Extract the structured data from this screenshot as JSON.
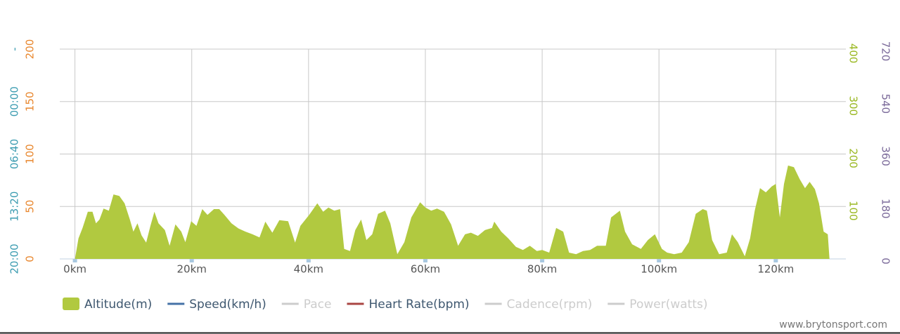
{
  "chart_data": {
    "type": "area",
    "xlim": [
      -2.6,
      132
    ],
    "xticks": [
      {
        "value": 0,
        "label": "0km"
      },
      {
        "value": 20,
        "label": "20km"
      },
      {
        "value": 40,
        "label": "40km"
      },
      {
        "value": 60,
        "label": "60km"
      },
      {
        "value": 80,
        "label": "80km"
      },
      {
        "value": 100,
        "label": "100km"
      },
      {
        "value": 120,
        "label": "120km"
      }
    ],
    "ylim": [
      0,
      200
    ],
    "yticks": [
      0,
      50,
      100,
      150,
      200
    ],
    "ycolor": "#e8872e",
    "pace_lim": [
      1200,
      -400
    ],
    "pace_ticks": [
      {
        "value": 1200,
        "label": "20:00"
      },
      {
        "value": 800,
        "label": "13:20"
      },
      {
        "value": 400,
        "label": "06:40"
      },
      {
        "value": 0,
        "label": "00:00"
      },
      {
        "value": -400,
        "label": "-"
      }
    ],
    "pace_color": "#3a9bb0",
    "y2lim": [
      0,
      400
    ],
    "y2ticks": [
      100,
      200,
      300,
      400
    ],
    "y2color": "#9ab822",
    "y3lim": [
      0,
      720
    ],
    "y3ticks": [
      0,
      180,
      360,
      540,
      720
    ],
    "y3color": "#7b6a9a",
    "grid": true,
    "legend": "bottom",
    "credit": "www.brytonsport.com",
    "series": [
      {
        "name": "Altitude(m)",
        "color": "#b1c940",
        "axis": "y2",
        "x": [
          0,
          0.6,
          1.3,
          2.2,
          3.0,
          3.6,
          4.2,
          4.9,
          5.8,
          6.6,
          7.6,
          8.5,
          9.4,
          10.0,
          10.7,
          11.4,
          12.2,
          12.9,
          13.6,
          14.3,
          15.4,
          16.2,
          17.2,
          18.2,
          18.9,
          19.9,
          20.8,
          21.8,
          22.7,
          23.8,
          24.7,
          25.6,
          26.8,
          28.0,
          29.2,
          30.4,
          31.6,
          32.6,
          33.8,
          35.0,
          36.5,
          37.7,
          38.6,
          40.1,
          41.5,
          42.5,
          43.4,
          44.4,
          45.4,
          46.1,
          47.1,
          48.0,
          49.0,
          49.9,
          50.9,
          51.9,
          53.1,
          54.0,
          55.2,
          56.4,
          57.6,
          59.1,
          60.0,
          61.0,
          62.0,
          63.2,
          64.4,
          65.6,
          66.8,
          67.8,
          69.0,
          70.2,
          71.4,
          71.8,
          73.0,
          74.2,
          75.5,
          76.7,
          77.9,
          79.1,
          80.0,
          81.2,
          82.4,
          83.6,
          84.6,
          85.8,
          87.0,
          88.2,
          89.4,
          90.9,
          91.8,
          93.3,
          94.2,
          95.4,
          96.9,
          98.1,
          99.3,
          100.5,
          101.4,
          102.6,
          103.9,
          105.1,
          106.3,
          107.5,
          108.2,
          109.1,
          110.3,
          111.6,
          112.5,
          113.5,
          114.7,
          115.6,
          116.4,
          117.3,
          118.3,
          119.3,
          120.0,
          120.7,
          121.4,
          122.1,
          123.1,
          124.1,
          125.0,
          125.8,
          126.7,
          127.4,
          128.2,
          128.9,
          129.2
        ],
        "values": [
          0,
          39,
          59,
          90,
          90,
          68,
          75,
          96,
          92,
          123,
          120,
          106,
          75,
          52,
          68,
          45,
          31,
          62,
          90,
          68,
          55,
          25,
          66,
          52,
          32,
          72,
          63,
          95,
          84,
          95,
          95,
          84,
          68,
          58,
          52,
          47,
          41,
          71,
          50,
          74,
          72,
          31,
          63,
          84,
          106,
          90,
          98,
          92,
          95,
          19,
          15,
          55,
          75,
          36,
          47,
          86,
          92,
          68,
          9,
          32,
          79,
          108,
          98,
          92,
          96,
          90,
          66,
          25,
          47,
          50,
          44,
          55,
          59,
          71,
          52,
          39,
          23,
          17,
          25,
          15,
          17,
          12,
          59,
          52,
          12,
          9,
          15,
          17,
          25,
          25,
          79,
          92,
          52,
          28,
          19,
          36,
          47,
          19,
          12,
          9,
          12,
          32,
          86,
          95,
          92,
          36,
          9,
          12,
          47,
          32,
          5,
          39,
          92,
          135,
          127,
          138,
          143,
          79,
          143,
          178,
          175,
          152,
          135,
          147,
          133,
          106,
          52,
          47,
          0
        ]
      },
      {
        "name": "Speed(km/h)",
        "color": "#4572a7",
        "visible": true
      },
      {
        "name": "Pace",
        "color": "#cccccc",
        "visible": false
      },
      {
        "name": "Heart Rate(bpm)",
        "color": "#aa4643",
        "visible": true
      },
      {
        "name": "Cadence(rpm)",
        "color": "#cccccc",
        "visible": false
      },
      {
        "name": "Power(watts)",
        "color": "#cccccc",
        "visible": false
      }
    ]
  }
}
